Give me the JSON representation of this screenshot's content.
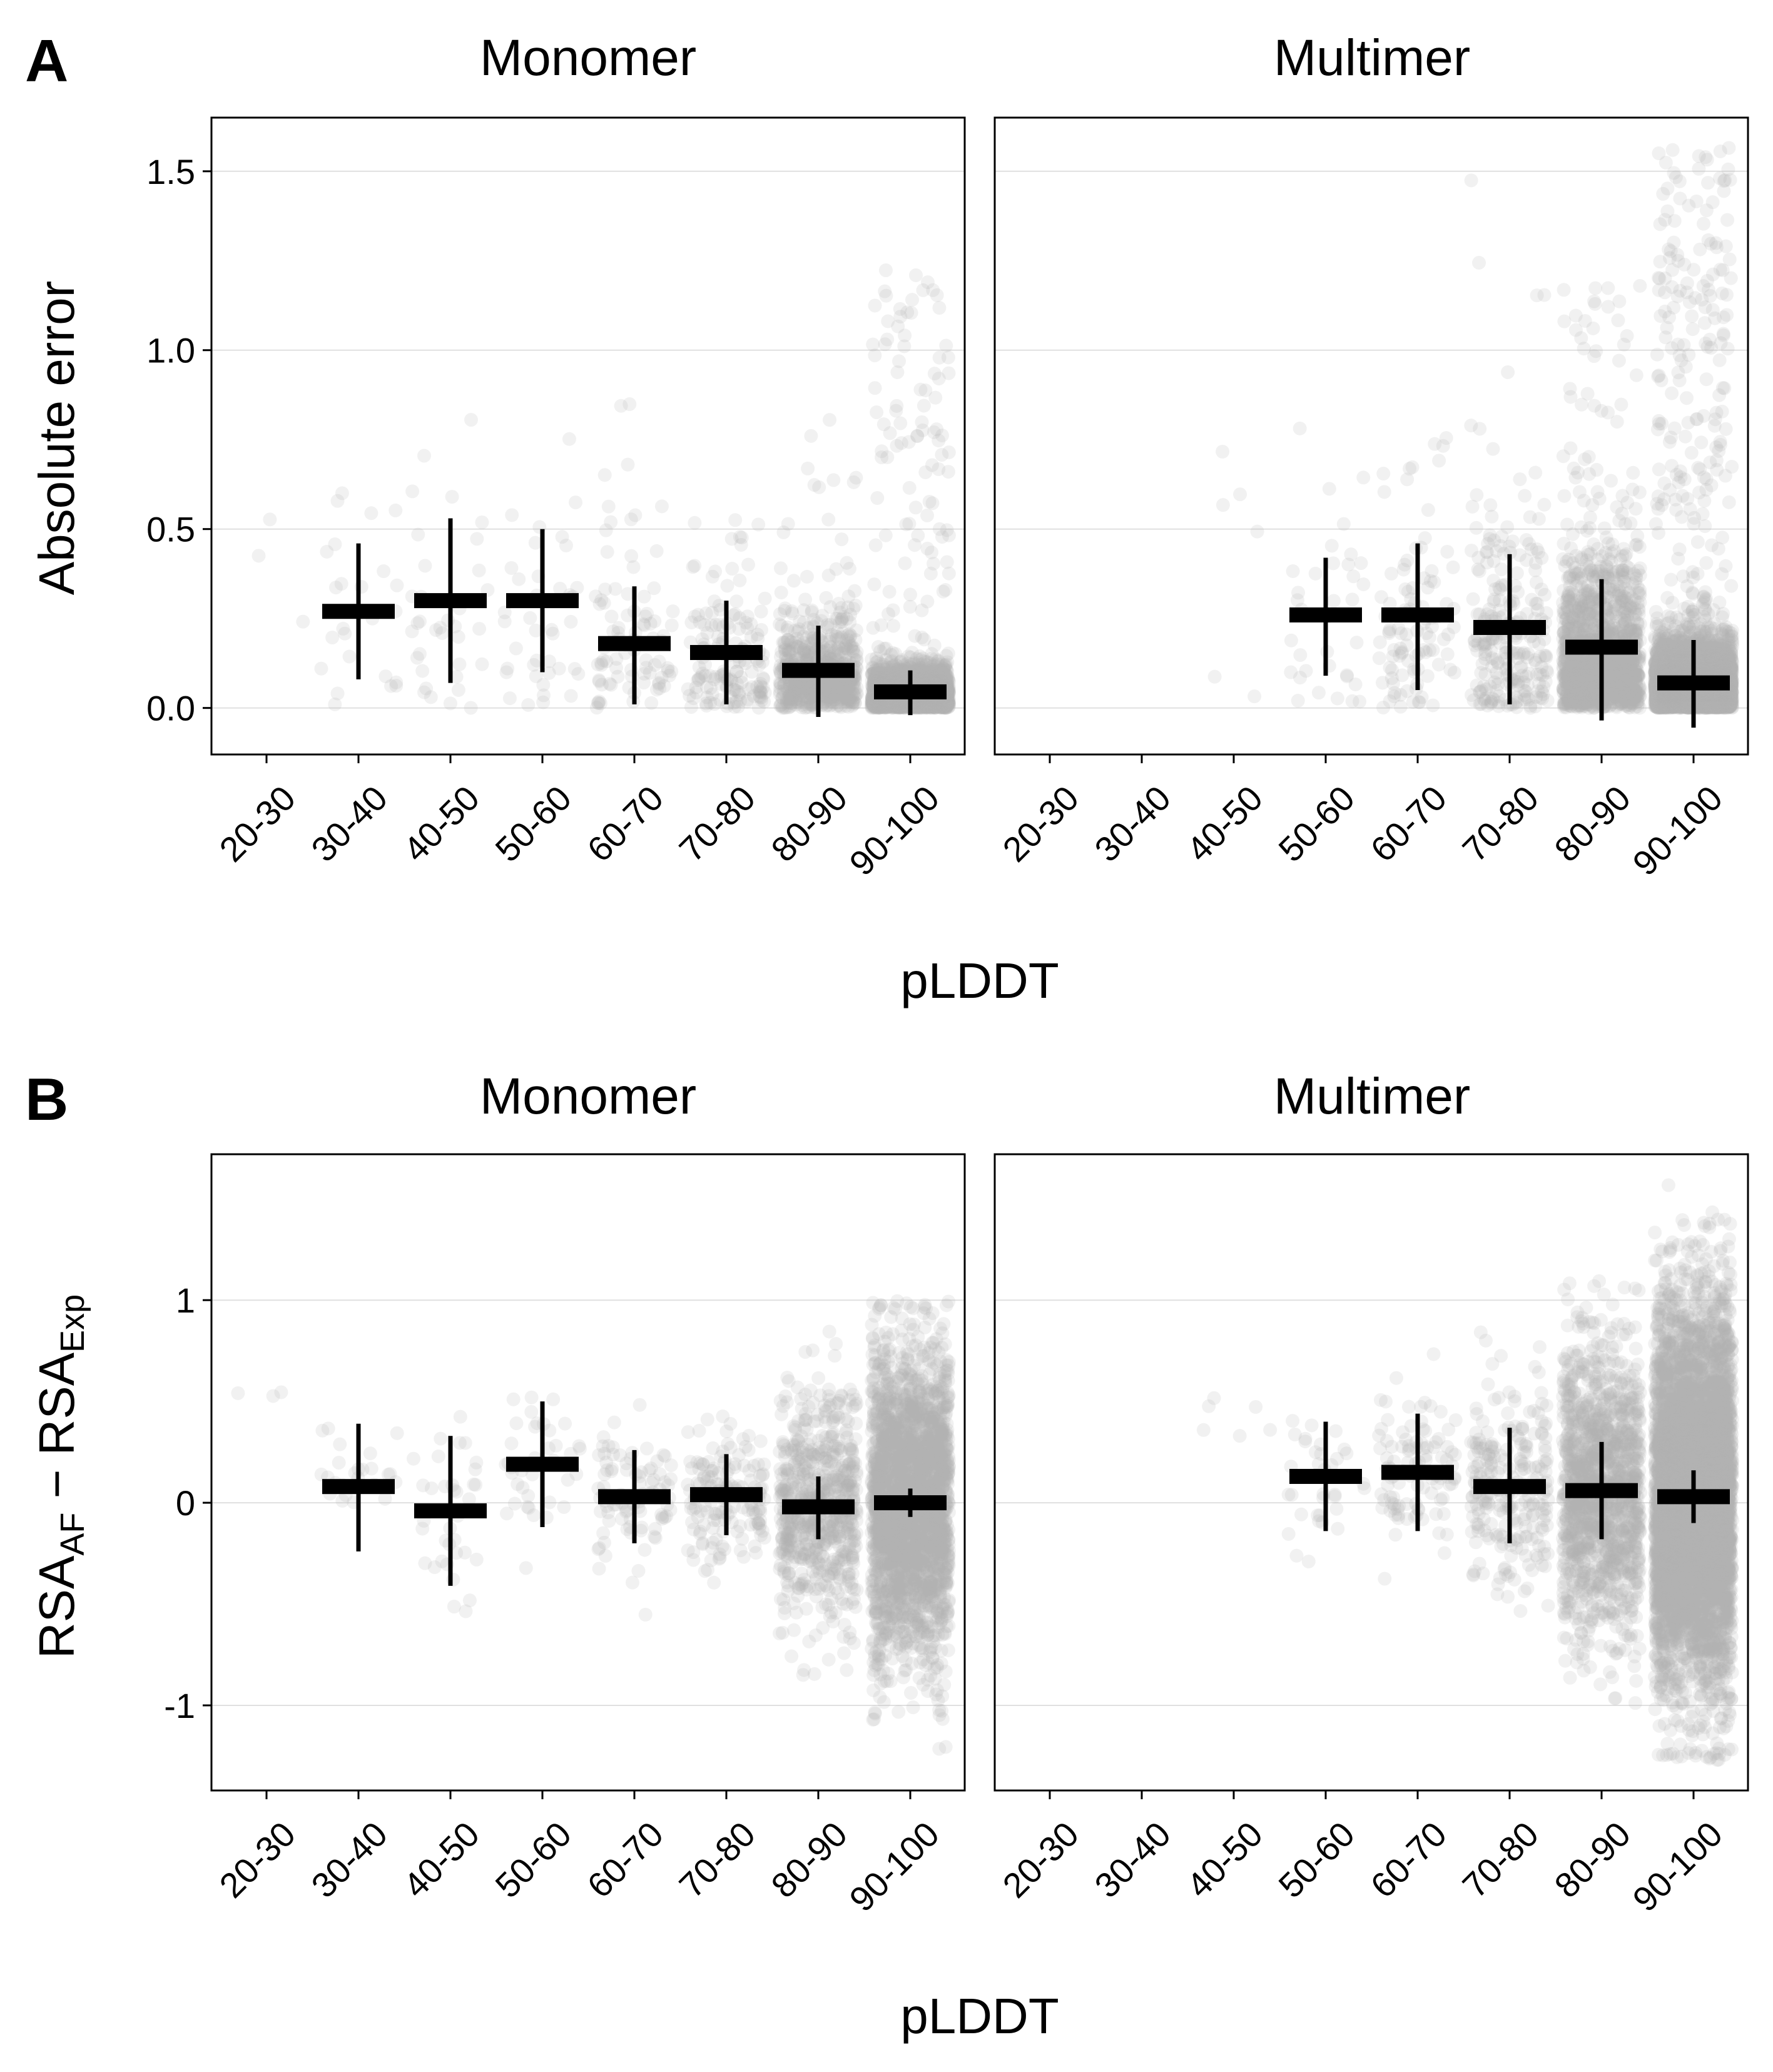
{
  "figure": {
    "panels": [
      {
        "letter": "A",
        "y_title": "Absolute error",
        "x_title": "pLDDT",
        "facets": [
          {
            "title": "Monomer"
          },
          {
            "title": "Multimer"
          }
        ]
      },
      {
        "letter": "B",
        "y_title_main": "RSA",
        "y_title_sub1": "AF",
        "y_title_minus": " − ",
        "y_title_main2": "RSA",
        "y_title_sub2": "Exp",
        "x_title": "pLDDT",
        "facets": [
          {
            "title": "Monomer"
          },
          {
            "title": "Multimer"
          }
        ]
      }
    ]
  },
  "colors": {
    "points": "#b3b3b3",
    "summary": "#000000",
    "grid": "#e0e0e0",
    "frame": "#000000"
  },
  "chart_data": [
    {
      "type": "scatter",
      "panel": "A",
      "facet": "Monomer",
      "title": "Monomer",
      "xlabel": "pLDDT",
      "ylabel": "Absolute error",
      "categories": [
        "20-30",
        "30-40",
        "40-50",
        "50-60",
        "60-70",
        "70-80",
        "80-90",
        "90-100"
      ],
      "yticks": [
        0.0,
        0.5,
        1.0,
        1.5
      ],
      "ytick_labels": [
        "0.0",
        "0.5",
        "1.0",
        "1.5"
      ],
      "ylim": [
        -0.13,
        1.65
      ],
      "grid": true,
      "summary": {
        "mean": [
          null,
          0.27,
          0.3,
          0.3,
          0.18,
          0.155,
          0.105,
          0.045
        ],
        "lower": [
          null,
          0.08,
          0.07,
          0.1,
          0.01,
          0.01,
          -0.025,
          -0.02
        ],
        "upper": [
          null,
          0.46,
          0.53,
          0.5,
          0.34,
          0.3,
          0.23,
          0.105
        ]
      },
      "point_spread": {
        "n": [
          3,
          25,
          35,
          40,
          90,
          160,
          700,
          2500
        ],
        "max": [
          0.53,
          0.66,
          0.88,
          0.79,
          0.9,
          0.63,
          0.84,
          1.25
        ]
      }
    },
    {
      "type": "scatter",
      "panel": "A",
      "facet": "Multimer",
      "title": "Multimer",
      "xlabel": "pLDDT",
      "ylabel": "Absolute error",
      "categories": [
        "20-30",
        "30-40",
        "40-50",
        "50-60",
        "60-70",
        "70-80",
        "80-90",
        "90-100"
      ],
      "yticks": [
        0.0,
        0.5,
        1.0,
        1.5
      ],
      "ytick_labels": [
        "0.0",
        "0.5",
        "1.0",
        "1.5"
      ],
      "ylim": [
        -0.13,
        1.65
      ],
      "grid": true,
      "summary": {
        "mean": [
          null,
          null,
          null,
          0.26,
          0.26,
          0.225,
          0.17,
          0.07
        ],
        "lower": [
          null,
          null,
          null,
          0.09,
          0.05,
          0.01,
          -0.035,
          -0.055
        ],
        "upper": [
          null,
          null,
          null,
          0.42,
          0.46,
          0.43,
          0.36,
          0.19
        ]
      },
      "point_spread": {
        "n": [
          0,
          0,
          6,
          35,
          100,
          250,
          1400,
          5000
        ],
        "max": [
          0,
          0,
          0.75,
          0.82,
          0.81,
          1.57,
          1.19,
          1.57
        ]
      }
    },
    {
      "type": "scatter",
      "panel": "B",
      "facet": "Monomer",
      "title": "Monomer",
      "xlabel": "pLDDT",
      "ylabel": "RSA_AF − RSA_Exp",
      "categories": [
        "20-30",
        "30-40",
        "40-50",
        "50-60",
        "60-70",
        "70-80",
        "80-90",
        "90-100"
      ],
      "yticks": [
        -1,
        0,
        1
      ],
      "ytick_labels": [
        "-1",
        "0",
        "1"
      ],
      "ylim": [
        -1.42,
        1.72
      ],
      "grid": true,
      "summary": {
        "mean": [
          null,
          0.08,
          -0.04,
          0.19,
          0.03,
          0.04,
          -0.02,
          0.0
        ],
        "lower": [
          null,
          -0.24,
          -0.41,
          -0.12,
          -0.2,
          -0.16,
          -0.18,
          -0.07
        ],
        "upper": [
          null,
          0.39,
          0.33,
          0.5,
          0.26,
          0.24,
          0.13,
          0.07
        ]
      },
      "point_spread": {
        "n": [
          3,
          25,
          35,
          40,
          90,
          160,
          700,
          2500
        ],
        "min": [
          0.5,
          -0.45,
          -0.9,
          -0.5,
          -0.6,
          -0.55,
          -0.85,
          -1.25
        ],
        "max": [
          0.55,
          0.65,
          0.5,
          0.67,
          0.5,
          0.55,
          0.87,
          1.0
        ]
      }
    },
    {
      "type": "scatter",
      "panel": "B",
      "facet": "Multimer",
      "title": "Multimer",
      "xlabel": "pLDDT",
      "ylabel": "RSA_AF − RSA_Exp",
      "categories": [
        "20-30",
        "30-40",
        "40-50",
        "50-60",
        "60-70",
        "70-80",
        "80-90",
        "90-100"
      ],
      "yticks": [
        -1,
        0,
        1
      ],
      "ytick_labels": [
        "-1",
        "0",
        "1"
      ],
      "ylim": [
        -1.42,
        1.72
      ],
      "grid": true,
      "summary": {
        "mean": [
          null,
          null,
          null,
          0.13,
          0.15,
          0.08,
          0.06,
          0.03
        ],
        "lower": [
          null,
          null,
          null,
          -0.14,
          -0.14,
          -0.2,
          -0.18,
          -0.1
        ],
        "upper": [
          null,
          null,
          null,
          0.4,
          0.44,
          0.37,
          0.3,
          0.16
        ]
      },
      "point_spread": {
        "n": [
          0,
          0,
          6,
          35,
          100,
          250,
          1400,
          5000
        ],
        "min": [
          0,
          0,
          -0.02,
          -0.45,
          -0.5,
          -0.7,
          -1.05,
          -1.27
        ],
        "max": [
          0,
          0,
          0.74,
          0.7,
          0.8,
          0.86,
          1.1,
          1.57
        ]
      }
    }
  ]
}
